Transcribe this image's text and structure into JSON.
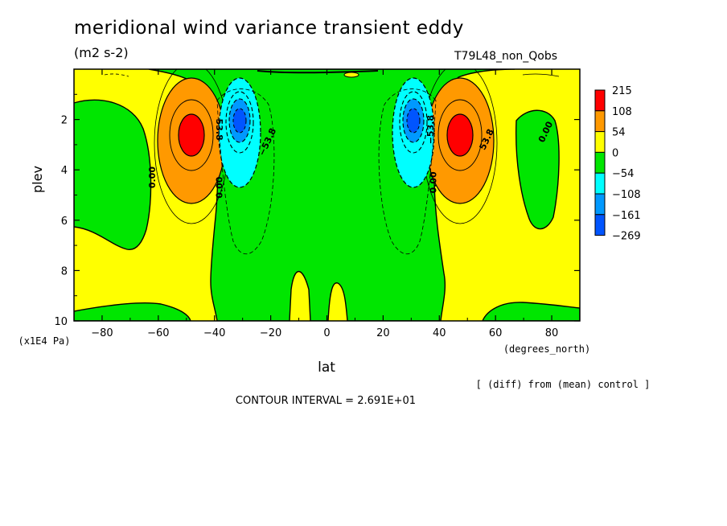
{
  "title": "meridional wind variance transient eddy",
  "units": "(m2 s-2)",
  "run_label": "T79L48_non_Qobs",
  "footer": {
    "diff_note": "[ (diff) from (mean) control ]",
    "contour_interval": "CONTOUR INTERVAL = 2.691E+01"
  },
  "chart_data": {
    "type": "heatmap",
    "xlabel": "lat",
    "xunits": "(degrees_north)",
    "ylabel": "plev",
    "yunits": "(x1E4 Pa)",
    "xlim": [
      -90,
      90
    ],
    "ylim": [
      10,
      0
    ],
    "xticks": [
      -80,
      -60,
      -40,
      -20,
      0,
      20,
      40,
      60,
      80
    ],
    "yticks": [
      2,
      4,
      6,
      8,
      10
    ],
    "colorbar": {
      "levels": [
        "215",
        "108",
        "54",
        "0",
        "-54",
        "-108",
        "-161",
        "-269"
      ],
      "colors": [
        "#ff0000",
        "#ff9900",
        "#ffff00",
        "#00e600",
        "#00ffff",
        "#0099ff",
        "#0055ff"
      ]
    },
    "contour_labels": [
      {
        "text": "53.8",
        "lat": -38.5,
        "plev": 2.4,
        "rot": 90
      },
      {
        "text": "0.00",
        "lat": -38,
        "plev": 4.7,
        "rot": -90
      },
      {
        "text": "-53.8",
        "lat": -21,
        "plev": 2.9,
        "rot": -65
      },
      {
        "text": "0.00",
        "lat": -62,
        "plev": 4.3,
        "rot": -90
      },
      {
        "text": "-53.8",
        "lat": 37,
        "plev": 2.4,
        "rot": -90
      },
      {
        "text": "0.00",
        "lat": 38,
        "plev": 4.5,
        "rot": -90
      },
      {
        "text": "53.8",
        "lat": 57,
        "plev": 2.8,
        "rot": -65
      },
      {
        "text": "0.00",
        "lat": 78,
        "plev": 2.5,
        "rot": -65
      }
    ]
  }
}
